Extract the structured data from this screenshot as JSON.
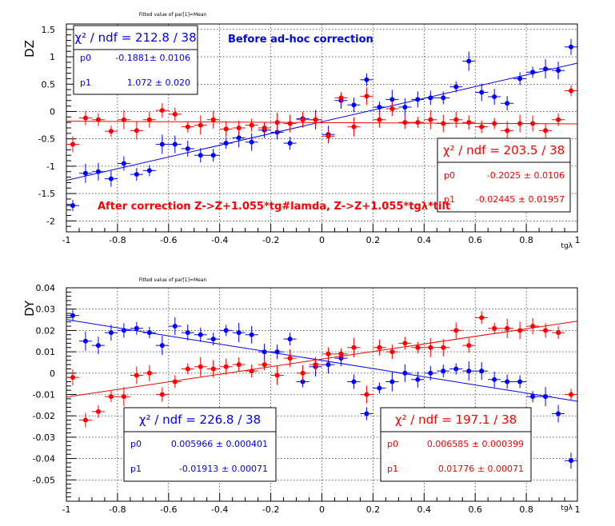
{
  "chart_data": [
    {
      "type": "scatter",
      "title": "Fitted value of par[1]=Mean",
      "ylabel": "DZ",
      "xlabel": "tgλ",
      "xlim": [
        -1,
        1
      ],
      "ylim": [
        -2.2,
        1.6
      ],
      "xticks": [
        "-1",
        "-0.8",
        "-0.6",
        "-0.4",
        "-0.2",
        "0",
        "0.2",
        "0.4",
        "0.6",
        "0.8",
        "1"
      ],
      "yticks": [
        "-2",
        "-1.5",
        "-1",
        "-0.5",
        "0",
        "0.5",
        "1",
        "1.5"
      ],
      "grid": true,
      "annotations": [
        {
          "text": "Before ad-hoc correction",
          "color": "#0000ff"
        },
        {
          "text": "After correction Z->Z+1.055*tg#lamda, Z->Z+1.055*tgλ*tilt",
          "color": "#ff0000"
        }
      ],
      "series": [
        {
          "color": "#0000ff",
          "x": [
            -0.975,
            -0.925,
            -0.875,
            -0.825,
            -0.775,
            -0.725,
            -0.675,
            -0.625,
            -0.575,
            -0.525,
            -0.475,
            -0.425,
            -0.375,
            -0.325,
            -0.275,
            -0.225,
            -0.175,
            -0.125,
            -0.075,
            -0.025,
            0.025,
            0.075,
            0.125,
            0.175,
            0.225,
            0.275,
            0.325,
            0.375,
            0.425,
            0.475,
            0.525,
            0.575,
            0.625,
            0.675,
            0.725,
            0.775,
            0.825,
            0.875,
            0.925,
            0.975
          ],
          "y": [
            -1.72,
            -1.13,
            -1.1,
            -1.23,
            -0.95,
            -1.15,
            -1.08,
            -0.6,
            -0.6,
            -0.68,
            -0.8,
            -0.8,
            -0.58,
            -0.48,
            -0.56,
            -0.34,
            -0.38,
            -0.58,
            -0.13,
            -0.15,
            -0.42,
            0.2,
            0.12,
            0.58,
            0.08,
            0.22,
            0.08,
            0.22,
            0.25,
            0.25,
            0.45,
            0.92,
            0.35,
            0.27,
            0.15,
            0.6,
            0.72,
            0.78,
            0.75,
            1.18
          ],
          "fit": {
            "p0": -0.1881,
            "p1": 1.072
          },
          "stats": {
            "chi2": "χ² / ndf = 212.8 / 38",
            "p0_label": "p0",
            "p0": "-0.1881± 0.0106",
            "p1_label": "p1",
            "p1": "1.072 ± 0.020"
          }
        },
        {
          "color": "#ff0000",
          "x": [
            -0.975,
            -0.925,
            -0.875,
            -0.825,
            -0.775,
            -0.725,
            -0.675,
            -0.625,
            -0.575,
            -0.525,
            -0.475,
            -0.425,
            -0.375,
            -0.325,
            -0.275,
            -0.225,
            -0.175,
            -0.125,
            -0.075,
            -0.025,
            0.025,
            0.075,
            0.125,
            0.175,
            0.225,
            0.275,
            0.325,
            0.375,
            0.425,
            0.475,
            0.525,
            0.575,
            0.625,
            0.675,
            0.725,
            0.775,
            0.825,
            0.875,
            0.925,
            0.975
          ],
          "y": [
            -0.6,
            -0.12,
            -0.15,
            -0.36,
            -0.15,
            -0.35,
            -0.15,
            0.02,
            -0.05,
            -0.28,
            -0.25,
            -0.15,
            -0.32,
            -0.3,
            -0.25,
            -0.3,
            -0.2,
            -0.22,
            -0.15,
            -0.15,
            -0.45,
            0.25,
            -0.28,
            0.28,
            -0.15,
            0.05,
            -0.2,
            -0.2,
            -0.15,
            -0.22,
            -0.15,
            -0.2,
            -0.28,
            -0.22,
            -0.35,
            -0.22,
            -0.22,
            -0.35,
            -0.15,
            0.38
          ],
          "fit": {
            "p0": -0.2025,
            "p1": -0.02445
          },
          "stats": {
            "chi2": "χ² / ndf = 203.5 / 38",
            "p0_label": "p0",
            "p0": "-0.2025 ± 0.0106",
            "p1_label": "p1",
            "p1": "-0.02445 ± 0.01957"
          }
        }
      ]
    },
    {
      "type": "scatter",
      "title": "Fitted value of par[1]=Mean",
      "ylabel": "DY",
      "xlabel": "tgλ",
      "xlim": [
        -1,
        1
      ],
      "ylim": [
        -0.06,
        0.04
      ],
      "xticks": [
        "-1",
        "-0.8",
        "-0.6",
        "-0.4",
        "-0.2",
        "0",
        "0.2",
        "0.4",
        "0.6",
        "0.8",
        "1"
      ],
      "yticks": [
        "-0.05",
        "-0.04",
        "-0.03",
        "-0.02",
        "-0.01",
        "0",
        "0.01",
        "0.02",
        "0.03",
        "0.04"
      ],
      "grid": true,
      "series": [
        {
          "color": "#0000ff",
          "x": [
            -0.975,
            -0.925,
            -0.875,
            -0.825,
            -0.775,
            -0.725,
            -0.675,
            -0.625,
            -0.575,
            -0.525,
            -0.475,
            -0.425,
            -0.375,
            -0.325,
            -0.275,
            -0.225,
            -0.175,
            -0.125,
            -0.075,
            -0.025,
            0.025,
            0.075,
            0.125,
            0.175,
            0.225,
            0.275,
            0.325,
            0.375,
            0.425,
            0.475,
            0.525,
            0.575,
            0.625,
            0.675,
            0.725,
            0.775,
            0.825,
            0.875,
            0.925,
            0.975
          ],
          "y": [
            0.027,
            0.015,
            0.013,
            0.019,
            0.02,
            0.021,
            0.019,
            0.013,
            0.022,
            0.019,
            0.018,
            0.016,
            0.02,
            0.019,
            0.018,
            0.01,
            0.01,
            0.016,
            -0.004,
            0.003,
            0.004,
            0.007,
            -0.004,
            -0.019,
            -0.007,
            -0.004,
            0.0,
            -0.003,
            0.0,
            0.001,
            0.002,
            0.001,
            0.001,
            -0.003,
            -0.004,
            -0.004,
            -0.011,
            -0.011,
            -0.019,
            -0.041
          ],
          "fit": {
            "p0": 0.005966,
            "p1": -0.01913
          },
          "stats": {
            "chi2": "χ² / ndf = 226.8 / 38",
            "p0_label": "p0",
            "p0": "0.005966 ± 0.000401",
            "p1_label": "p1",
            "p1": "-0.01913 ± 0.00071"
          }
        },
        {
          "color": "#ff0000",
          "x": [
            -0.975,
            -0.925,
            -0.875,
            -0.825,
            -0.775,
            -0.725,
            -0.675,
            -0.625,
            -0.575,
            -0.525,
            -0.475,
            -0.425,
            -0.375,
            -0.325,
            -0.275,
            -0.225,
            -0.175,
            -0.125,
            -0.075,
            -0.025,
            0.025,
            0.075,
            0.125,
            0.175,
            0.225,
            0.275,
            0.325,
            0.375,
            0.425,
            0.475,
            0.525,
            0.575,
            0.625,
            0.675,
            0.725,
            0.775,
            0.825,
            0.875,
            0.925,
            0.975
          ],
          "y": [
            -0.002,
            -0.022,
            -0.018,
            -0.011,
            -0.011,
            -0.001,
            0.0,
            -0.01,
            -0.004,
            0.002,
            0.003,
            0.002,
            0.003,
            0.004,
            0.001,
            0.004,
            -0.001,
            0.007,
            0.0,
            0.004,
            0.009,
            0.009,
            0.012,
            -0.01,
            0.012,
            0.01,
            0.014,
            0.012,
            0.012,
            0.012,
            0.02,
            0.013,
            0.026,
            0.021,
            0.021,
            0.02,
            0.022,
            0.02,
            0.019,
            -0.01
          ],
          "fit": {
            "p0": 0.006585,
            "p1": 0.01776
          },
          "stats": {
            "chi2": "χ² / ndf = 197.1 / 38",
            "p0_label": "p0",
            "p0": "0.006585 ± 0.000399",
            "p1_label": "p1",
            "p1": "0.01776 ± 0.00071"
          }
        }
      ]
    }
  ]
}
